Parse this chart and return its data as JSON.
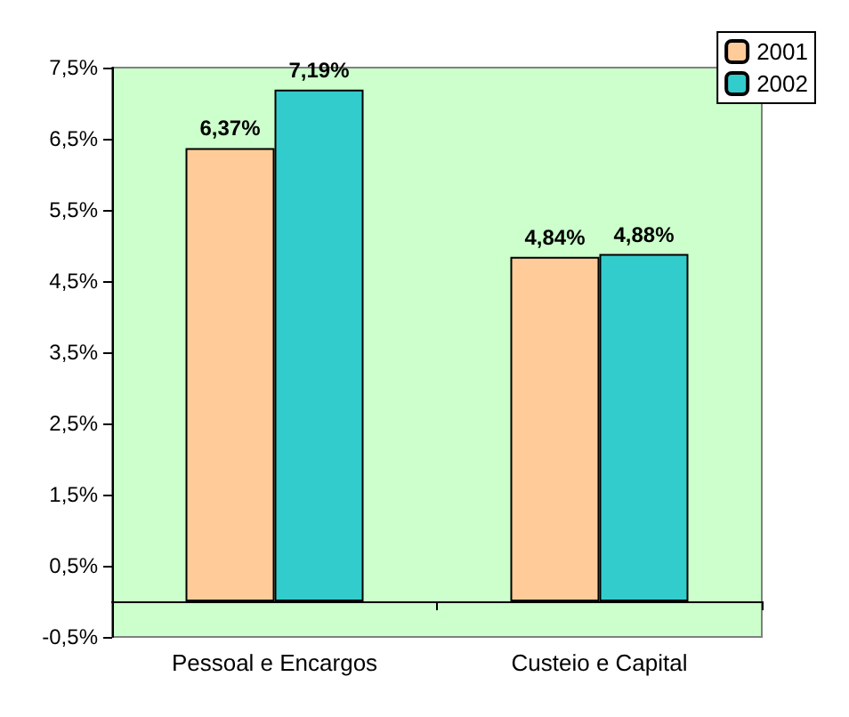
{
  "chart_data": {
    "type": "bar",
    "categories": [
      "Pessoal e Encargos",
      "Custeio e Capital"
    ],
    "series": [
      {
        "name": "2001",
        "color": "#ffcc99",
        "values": [
          6.37,
          4.84
        ],
        "value_labels": [
          "6,37%",
          "4,84%"
        ]
      },
      {
        "name": "2002",
        "color": "#33cccc",
        "values": [
          7.19,
          4.88
        ],
        "value_labels": [
          "7,19%",
          "4,88%"
        ]
      }
    ],
    "ylim": [
      -0.5,
      7.5
    ],
    "yticks": [
      {
        "value": -0.5,
        "label": "-0,5%"
      },
      {
        "value": 0.5,
        "label": "0,5%"
      },
      {
        "value": 1.5,
        "label": "1,5%"
      },
      {
        "value": 2.5,
        "label": "2,5%"
      },
      {
        "value": 3.5,
        "label": "3,5%"
      },
      {
        "value": 4.5,
        "label": "4,5%"
      },
      {
        "value": 5.5,
        "label": "5,5%"
      },
      {
        "value": 6.5,
        "label": "6,5%"
      },
      {
        "value": 7.5,
        "label": "7,5%"
      }
    ],
    "grid": false,
    "legend": "top right"
  }
}
